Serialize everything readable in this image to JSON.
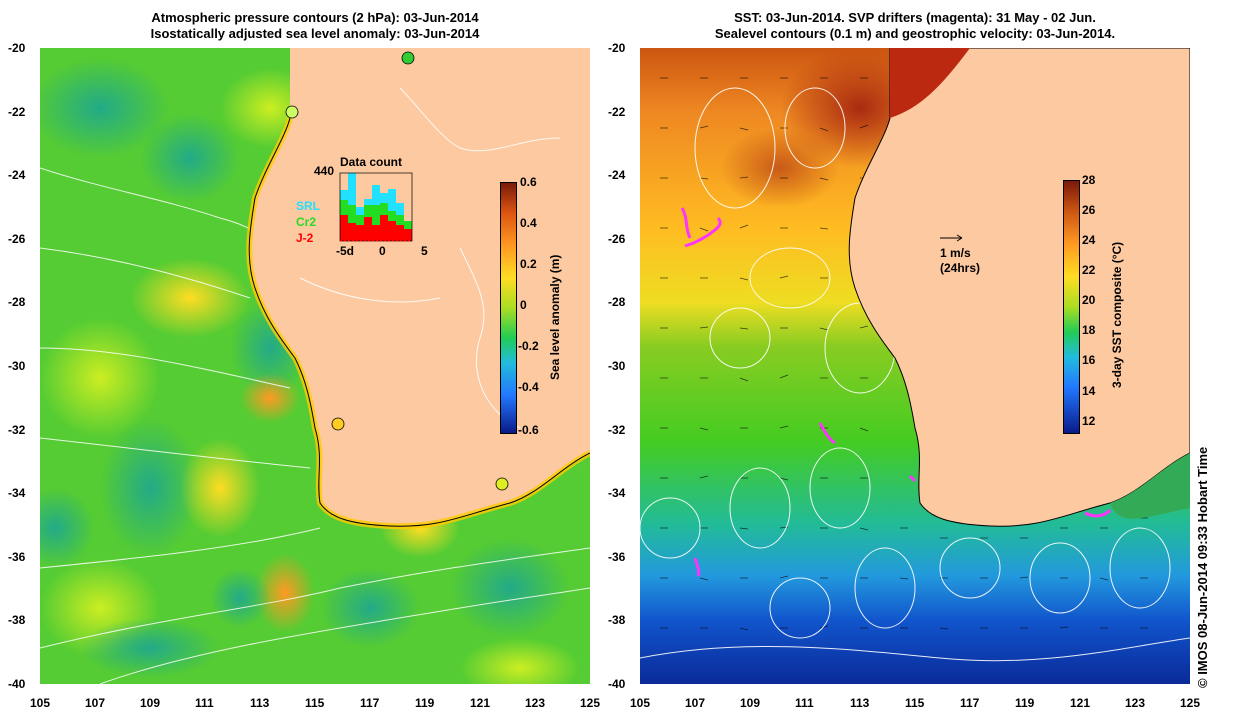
{
  "left": {
    "title_line1": "Atmospheric pressure contours (2 hPa): 03-Jun-2014",
    "title_line2": "Isostatically adjusted sea level anomaly: 03-Jun-2014",
    "colorbar": {
      "label": "Sea level anomaly (m)",
      "ticks": [
        "0.6",
        "0.4",
        "0.2",
        "0",
        "-0.2",
        "-0.4",
        "-0.6"
      ]
    },
    "inset": {
      "title": "Data count",
      "ymax": "440",
      "legend": [
        {
          "label": "SRL",
          "color": "#22e0ff"
        },
        {
          "label": "Cr2",
          "color": "#22dd22"
        },
        {
          "label": "J-2",
          "color": "#ff0000"
        }
      ],
      "xticks": [
        "-5d",
        "0",
        "5"
      ]
    }
  },
  "right": {
    "title_line1": "SST: 03-Jun-2014. SVP drifters (magenta): 31 May - 02 Jun.",
    "title_line2": "Sealevel contours (0.1 m) and geostrophic velocity: 03-Jun-2014.",
    "colorbar": {
      "label": "3-day SST composite (°C)",
      "ticks": [
        "28",
        "26",
        "24",
        "22",
        "20",
        "18",
        "16",
        "14",
        "12"
      ]
    },
    "scale_label": "1 m/s",
    "scale_sub": "(24hrs)"
  },
  "axes": {
    "lon_ticks": [
      "105",
      "107",
      "109",
      "111",
      "113",
      "115",
      "117",
      "119",
      "121",
      "123",
      "125"
    ],
    "lat_ticks": [
      "-20",
      "-22",
      "-24",
      "-26",
      "-28",
      "-30",
      "-32",
      "-34",
      "-36",
      "-38",
      "-40"
    ]
  },
  "credit": "© IMOS 08-Jun-2014 09:33 Hobart Time",
  "colors": {
    "land": "#fdc9a0",
    "ocean_mid": "#44cc22"
  }
}
